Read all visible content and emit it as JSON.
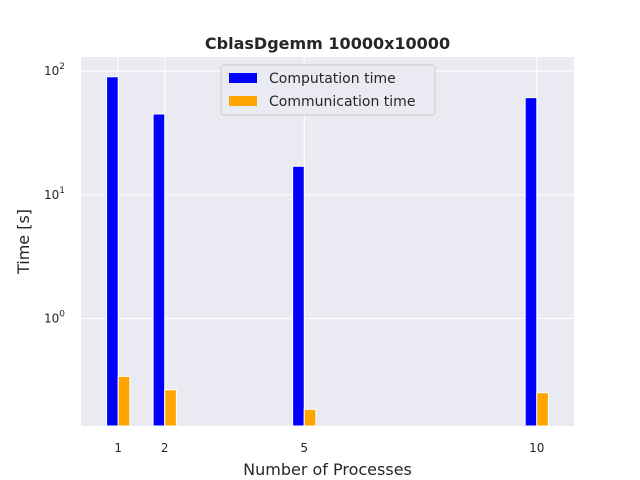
{
  "chart_data": {
    "type": "bar",
    "title": "CblasDgemm 10000x10000",
    "xlabel": "Number of Processes",
    "ylabel": "Time [s]",
    "yscale": "log",
    "ylim": [
      0.135,
      130
    ],
    "xlim": [
      0.2,
      10.8
    ],
    "grid": true,
    "legend_position": "top-center",
    "categories": [
      1,
      2,
      5,
      10
    ],
    "series": [
      {
        "name": "Computation time",
        "color": "#0000ff",
        "values": [
          90,
          45,
          17,
          61
        ]
      },
      {
        "name": "Communication time",
        "color": "#ffa500",
        "values": [
          0.34,
          0.265,
          0.184,
          0.251
        ]
      }
    ],
    "yticks": [
      {
        "value": 1,
        "base": "10",
        "exp": "0"
      },
      {
        "value": 10,
        "base": "10",
        "exp": "1"
      },
      {
        "value": 100,
        "base": "10",
        "exp": "2"
      }
    ],
    "xticks": [
      "1",
      "2",
      "5",
      "10"
    ]
  }
}
